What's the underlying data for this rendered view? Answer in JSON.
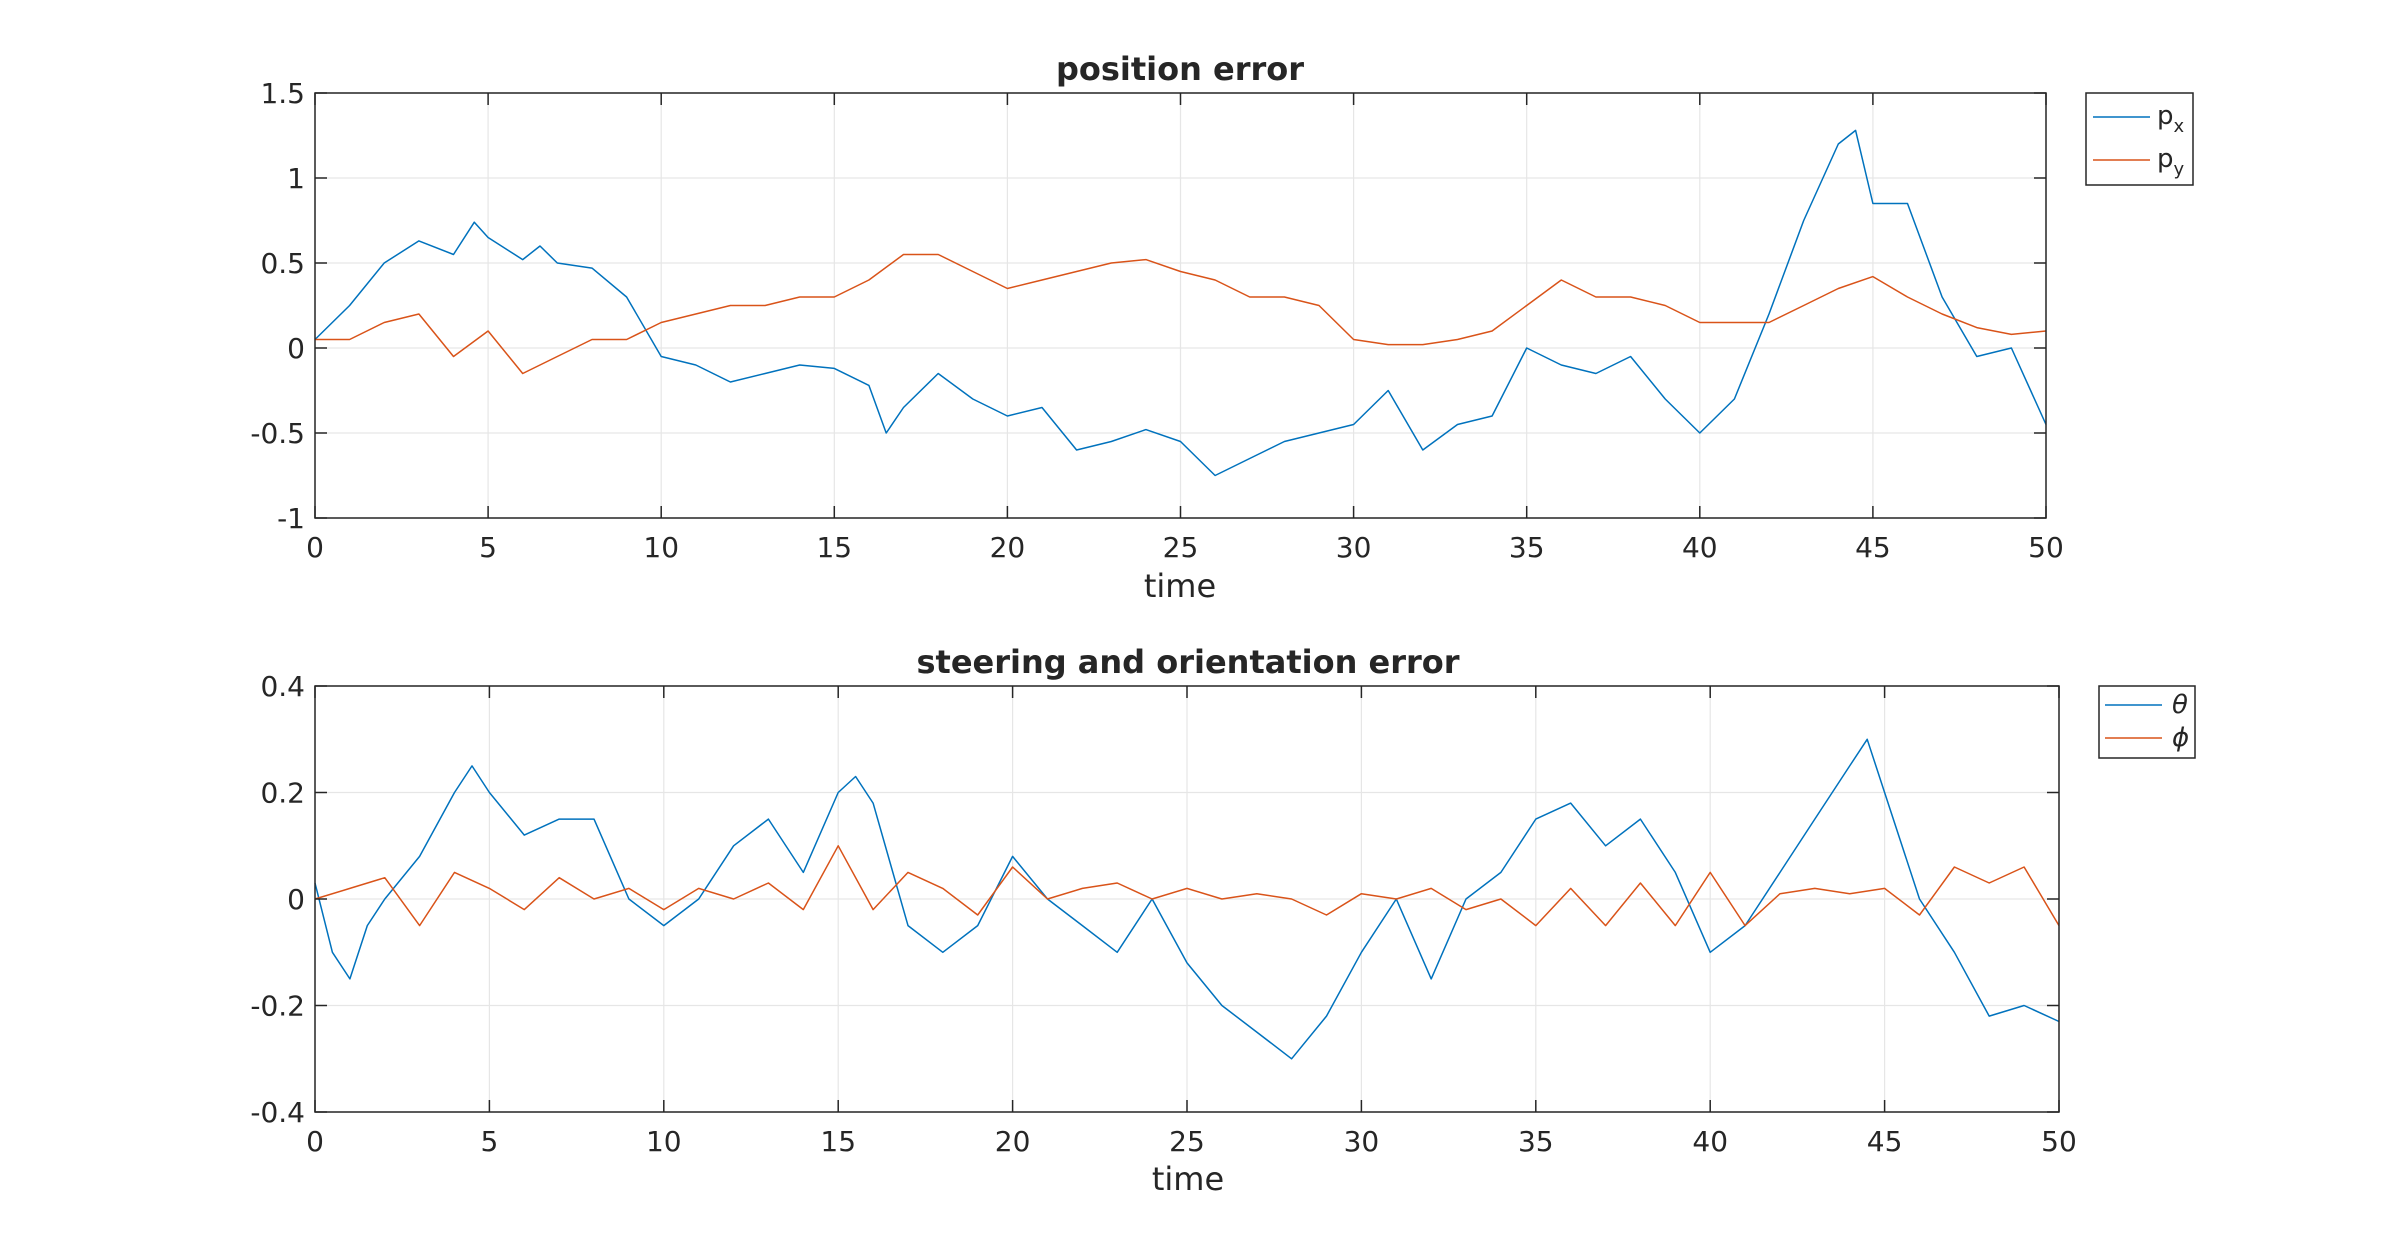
{
  "chart_data": [
    {
      "type": "line",
      "title": "position error",
      "xlabel": "time",
      "ylabel": "",
      "xlim": [
        0,
        50
      ],
      "ylim": [
        -1,
        1.5
      ],
      "xticks": [
        "0",
        "5",
        "10",
        "15",
        "20",
        "25",
        "30",
        "35",
        "40",
        "45",
        "50"
      ],
      "yticks": [
        "-1",
        "-0.5",
        "0",
        "0.5",
        "1",
        "1.5"
      ],
      "grid": true,
      "legend_position": "outside-top-right",
      "series": [
        {
          "name": "p",
          "subscript": "x",
          "color": "#0072BD",
          "x": [
            0,
            1,
            2,
            3,
            4,
            4.6,
            5,
            6,
            6.5,
            7,
            8,
            9,
            10,
            11,
            12,
            13,
            14,
            15,
            16,
            16.5,
            17,
            18,
            19,
            20,
            21,
            22,
            23,
            24,
            25,
            26,
            27,
            28,
            29,
            30,
            31,
            32,
            33,
            34,
            35,
            36,
            37,
            38,
            39,
            40,
            41,
            42,
            43,
            44,
            44.5,
            45,
            46,
            47,
            48,
            49,
            50
          ],
          "y": [
            0.05,
            0.25,
            0.5,
            0.63,
            0.55,
            0.74,
            0.65,
            0.52,
            0.6,
            0.5,
            0.47,
            0.3,
            -0.05,
            -0.1,
            -0.2,
            -0.15,
            -0.1,
            -0.12,
            -0.22,
            -0.5,
            -0.35,
            -0.15,
            -0.3,
            -0.4,
            -0.35,
            -0.6,
            -0.55,
            -0.48,
            -0.55,
            -0.75,
            -0.65,
            -0.55,
            -0.5,
            -0.45,
            -0.25,
            -0.6,
            -0.45,
            -0.4,
            0.0,
            -0.1,
            -0.15,
            -0.05,
            -0.3,
            -0.5,
            -0.3,
            0.2,
            0.75,
            1.2,
            1.28,
            0.85,
            0.85,
            0.3,
            -0.05,
            0.0,
            -0.45
          ]
        },
        {
          "name": "p",
          "subscript": "y",
          "color": "#D95319",
          "x": [
            0,
            1,
            2,
            3,
            4,
            5,
            6,
            7,
            8,
            9,
            10,
            11,
            12,
            13,
            14,
            15,
            16,
            17,
            18,
            19,
            20,
            21,
            22,
            23,
            24,
            25,
            26,
            27,
            28,
            29,
            30,
            31,
            32,
            33,
            34,
            35,
            36,
            37,
            38,
            39,
            40,
            41,
            42,
            43,
            44,
            45,
            46,
            47,
            48,
            49,
            50
          ],
          "y": [
            0.05,
            0.05,
            0.15,
            0.2,
            -0.05,
            0.1,
            -0.15,
            -0.05,
            0.05,
            0.05,
            0.15,
            0.2,
            0.25,
            0.25,
            0.3,
            0.3,
            0.4,
            0.55,
            0.55,
            0.45,
            0.35,
            0.4,
            0.45,
            0.5,
            0.52,
            0.45,
            0.4,
            0.3,
            0.3,
            0.25,
            0.05,
            0.02,
            0.02,
            0.05,
            0.1,
            0.25,
            0.4,
            0.3,
            0.3,
            0.25,
            0.15,
            0.15,
            0.15,
            0.25,
            0.35,
            0.42,
            0.3,
            0.2,
            0.12,
            0.08,
            0.1
          ]
        }
      ]
    },
    {
      "type": "line",
      "title": "steering and orientation error",
      "xlabel": "time",
      "ylabel": "",
      "xlim": [
        0,
        50
      ],
      "ylim": [
        -0.4,
        0.4
      ],
      "xticks": [
        "0",
        "5",
        "10",
        "15",
        "20",
        "25",
        "30",
        "35",
        "40",
        "45",
        "50"
      ],
      "yticks": [
        "-0.4",
        "-0.2",
        "0",
        "0.2",
        "0.4"
      ],
      "grid": true,
      "legend_position": "outside-top-right",
      "series": [
        {
          "name": "θ",
          "color": "#0072BD",
          "x": [
            0,
            0.5,
            1,
            1.5,
            2,
            3,
            4,
            4.5,
            5,
            6,
            7,
            8,
            9,
            10,
            11,
            12,
            13,
            14,
            15,
            15.5,
            16,
            17,
            18,
            19,
            20,
            21,
            22,
            23,
            24,
            25,
            26,
            27,
            28,
            29,
            30,
            31,
            32,
            33,
            34,
            35,
            36,
            37,
            38,
            39,
            40,
            41,
            42,
            43,
            44,
            44.5,
            45,
            46,
            47,
            48,
            49,
            50
          ],
          "y": [
            0.03,
            -0.1,
            -0.15,
            -0.05,
            0.0,
            0.08,
            0.2,
            0.25,
            0.2,
            0.12,
            0.15,
            0.15,
            0.0,
            -0.05,
            0.0,
            0.1,
            0.15,
            0.05,
            0.2,
            0.23,
            0.18,
            -0.05,
            -0.1,
            -0.05,
            0.08,
            0.0,
            -0.05,
            -0.1,
            0.0,
            -0.12,
            -0.2,
            -0.25,
            -0.3,
            -0.22,
            -0.1,
            0.0,
            -0.15,
            0.0,
            0.05,
            0.15,
            0.18,
            0.1,
            0.15,
            0.05,
            -0.1,
            -0.05,
            0.05,
            0.15,
            0.25,
            0.3,
            0.2,
            0.0,
            -0.1,
            -0.22,
            -0.2,
            -0.23
          ]
        },
        {
          "name": "ϕ",
          "color": "#D95319",
          "x": [
            0,
            1,
            2,
            3,
            4,
            5,
            6,
            7,
            8,
            9,
            10,
            11,
            12,
            13,
            14,
            15,
            16,
            17,
            18,
            19,
            20,
            21,
            22,
            23,
            24,
            25,
            26,
            27,
            28,
            29,
            30,
            31,
            32,
            33,
            34,
            35,
            36,
            37,
            38,
            39,
            40,
            41,
            42,
            43,
            44,
            45,
            46,
            47,
            48,
            49,
            50
          ],
          "y": [
            0.0,
            0.02,
            0.04,
            -0.05,
            0.05,
            0.02,
            -0.02,
            0.04,
            0.0,
            0.02,
            -0.02,
            0.02,
            0.0,
            0.03,
            -0.02,
            0.1,
            -0.02,
            0.05,
            0.02,
            -0.03,
            0.06,
            0.0,
            0.02,
            0.03,
            0.0,
            0.02,
            0.0,
            0.01,
            0.0,
            -0.03,
            0.01,
            0.0,
            0.02,
            -0.02,
            0.0,
            -0.05,
            0.02,
            -0.05,
            0.03,
            -0.05,
            0.05,
            -0.05,
            0.01,
            0.02,
            0.01,
            0.02,
            -0.03,
            0.06,
            0.03,
            0.06,
            -0.05
          ]
        }
      ]
    }
  ]
}
